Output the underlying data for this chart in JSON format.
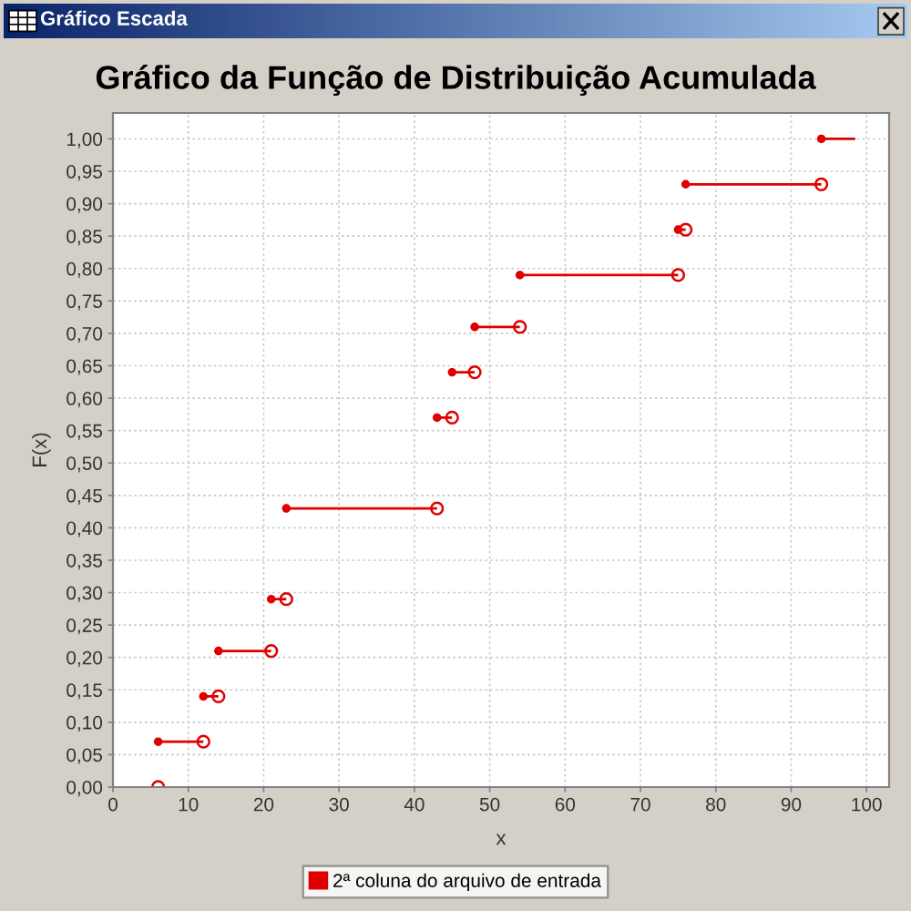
{
  "chart_data": {
    "type": "line",
    "title": "Gráfico da Função de Distribuição Acumulada",
    "xlabel": "x",
    "ylabel": "F(x)",
    "annotations": [
      "Gráfico Escada"
    ],
    "series": [
      {
        "name": "2ª coluna do arquivo de entrada",
        "color": "#e00000",
        "x": [
          6
        ],
        "values": [
          0
        ]
      },
      {
        "color": "#e00000",
        "x": [
          6,
          12
        ],
        "values": [
          0.07,
          0.07
        ]
      },
      {
        "color": "#e00000",
        "x": [
          12,
          14
        ],
        "values": [
          0.14,
          0.14
        ]
      },
      {
        "color": "#e00000",
        "x": [
          14,
          21
        ],
        "values": [
          0.21,
          0.21
        ]
      },
      {
        "color": "#e00000",
        "x": [
          21,
          23
        ],
        "values": [
          0.29,
          0.29
        ]
      },
      {
        "color": "#e00000",
        "x": [
          23,
          43
        ],
        "values": [
          0.43,
          0.43
        ]
      },
      {
        "color": "#e00000",
        "x": [
          43,
          45
        ],
        "values": [
          0.57,
          0.57
        ]
      },
      {
        "color": "#e00000",
        "x": [
          45,
          48
        ],
        "values": [
          0.64,
          0.64
        ]
      },
      {
        "color": "#e00000",
        "x": [
          48,
          54
        ],
        "values": [
          0.71,
          0.71
        ]
      },
      {
        "color": "#e00000",
        "x": [
          54,
          75
        ],
        "values": [
          0.79,
          0.79
        ]
      },
      {
        "color": "#e00000",
        "x": [
          75,
          76
        ],
        "values": [
          0.86,
          0.86
        ]
      },
      {
        "color": "#e00000",
        "x": [
          76,
          94
        ],
        "values": [
          0.93,
          0.93
        ]
      },
      {
        "color": "#e00000",
        "x": [
          94,
          98.5
        ],
        "values": [
          1.0,
          1.0
        ]
      }
    ],
    "xlim": [
      0,
      103
    ],
    "ylim": [
      0,
      1.04
    ],
    "xticks": [
      0,
      10,
      20,
      30,
      40,
      50,
      60,
      70,
      80,
      90,
      100
    ],
    "yticks": [
      {
        "value": 0,
        "label": "0,00"
      },
      {
        "value": 0.05,
        "label": "0,05"
      },
      {
        "value": 0.1,
        "label": "0,10"
      },
      {
        "value": 0.15,
        "label": "0,15"
      },
      {
        "value": 0.2,
        "label": "0,20"
      },
      {
        "value": 0.25,
        "label": "0,25"
      },
      {
        "value": 0.3,
        "label": "0,30"
      },
      {
        "value": 0.35,
        "label": "0,35"
      },
      {
        "value": 0.4,
        "label": "0,40"
      },
      {
        "value": 0.45,
        "label": "0,45"
      },
      {
        "value": 0.5,
        "label": "0,50"
      },
      {
        "value": 0.55,
        "label": "0,55"
      },
      {
        "value": 0.6,
        "label": "0,60"
      },
      {
        "value": 0.65,
        "label": "0,65"
      },
      {
        "value": 0.7,
        "label": "0,70"
      },
      {
        "value": 0.75,
        "label": "0,75"
      },
      {
        "value": 0.8,
        "label": "0,80"
      },
      {
        "value": 0.85,
        "label": "0,85"
      },
      {
        "value": 0.9,
        "label": "0,90"
      },
      {
        "value": 0.95,
        "label": "0,95"
      },
      {
        "value": 1.0,
        "label": "1,00"
      }
    ],
    "grid": true,
    "legend": "bottom",
    "marker": "circle",
    "line_style": "solid"
  }
}
